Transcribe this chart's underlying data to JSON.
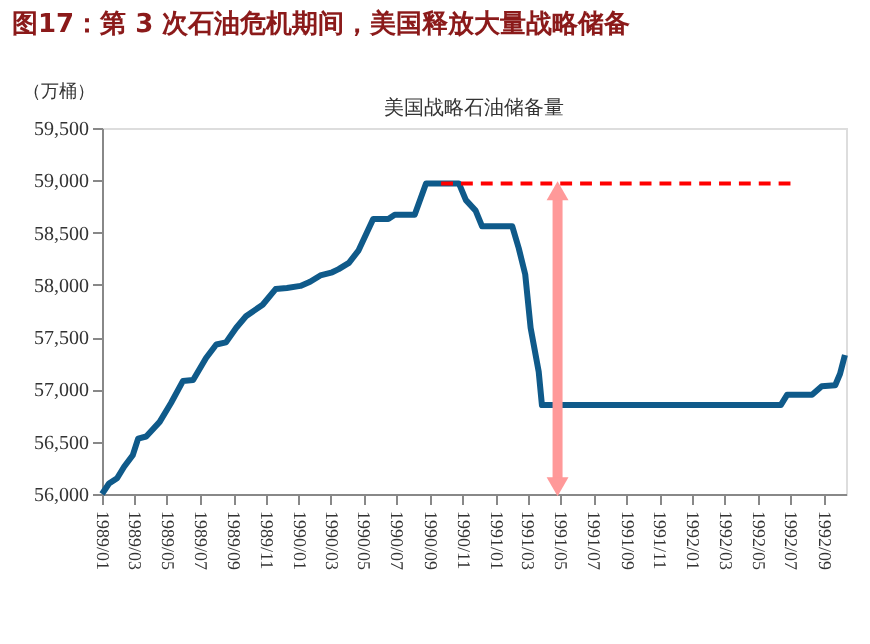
{
  "chart_data": {
    "type": "line",
    "title": "图17：第 3 次石油危机期间，美国释放大量战略储备",
    "subtitle": "美国战略石油储备量",
    "ylabel": "（万桶）",
    "xlim": [
      "1989-01-01",
      "1992-10-12"
    ],
    "ylim": [
      56000,
      59500
    ],
    "yticks": [
      {
        "value": 56000,
        "label": "56,000"
      },
      {
        "value": 56500,
        "label": "56,500"
      },
      {
        "value": 57000,
        "label": "57,000"
      },
      {
        "value": 57500,
        "label": "57,500"
      },
      {
        "value": 58000,
        "label": "58,000"
      },
      {
        "value": 58500,
        "label": "58,500"
      },
      {
        "value": 59000,
        "label": "59,000"
      },
      {
        "value": 59500,
        "label": "59,500"
      }
    ],
    "xticks": [
      {
        "value": "1989-01",
        "label": "1989/01"
      },
      {
        "value": "1989-03",
        "label": "1989/03"
      },
      {
        "value": "1989-05",
        "label": "1989/05"
      },
      {
        "value": "1989-07",
        "label": "1989/07"
      },
      {
        "value": "1989-09",
        "label": "1989/09"
      },
      {
        "value": "1989-11",
        "label": "1989/11"
      },
      {
        "value": "1990-01",
        "label": "1990/01"
      },
      {
        "value": "1990-03",
        "label": "1990/03"
      },
      {
        "value": "1990-05",
        "label": "1990/05"
      },
      {
        "value": "1990-07",
        "label": "1990/07"
      },
      {
        "value": "1990-09",
        "label": "1990/09"
      },
      {
        "value": "1990-11",
        "label": "1990/11"
      },
      {
        "value": "1991-01",
        "label": "1991/01"
      },
      {
        "value": "1991-03",
        "label": "1991/03"
      },
      {
        "value": "1991-05",
        "label": "1991/05"
      },
      {
        "value": "1991-07",
        "label": "1991/07"
      },
      {
        "value": "1991-09",
        "label": "1991/09"
      },
      {
        "value": "1991-11",
        "label": "1991/11"
      },
      {
        "value": "1992-01",
        "label": "1992/01"
      },
      {
        "value": "1992-03",
        "label": "1992/03"
      },
      {
        "value": "1992-05",
        "label": "1992/05"
      },
      {
        "value": "1992-07",
        "label": "1992/07"
      },
      {
        "value": "1992-09",
        "label": "1992/09"
      }
    ],
    "grid": false,
    "marker": "none",
    "series": [
      {
        "type": "line",
        "color": "#0f5a8a",
        "line_style": "solid",
        "x": [
          "1989-01-01",
          "1989-01-14",
          "1989-01-29",
          "1989-02-11",
          "1989-02-27",
          "1989-03-09",
          "1989-03-24",
          "1989-04-18",
          "1989-05-09",
          "1989-05-31",
          "1989-06-19",
          "1989-07-13",
          "1989-08-01",
          "1989-08-19",
          "1989-09-07",
          "1989-09-25",
          "1989-10-26",
          "1989-11-19",
          "1989-12-10",
          "1990-01-04",
          "1990-01-22",
          "1990-02-10",
          "1990-03-04",
          "1990-03-16",
          "1990-04-04",
          "1990-04-22",
          "1990-05-19",
          "1990-06-16",
          "1990-06-28",
          "1990-08-04",
          "1990-08-25",
          "1990-10-25",
          "1990-11-07",
          "1990-11-25",
          "1990-12-07",
          "1991-02-01",
          "1991-02-13",
          "1991-02-25",
          "1991-03-07",
          "1991-03-22",
          "1991-03-28",
          "1992-06-13",
          "1992-06-25",
          "1992-08-10",
          "1992-08-28",
          "1992-09-22",
          "1992-10-01",
          "1992-10-10"
        ],
        "values": [
          56000,
          56100,
          56150,
          56260,
          56370,
          56530,
          56550,
          56690,
          56870,
          57080,
          57090,
          57300,
          57430,
          57450,
          57590,
          57700,
          57810,
          57960,
          57970,
          57990,
          58030,
          58090,
          58120,
          58150,
          58210,
          58330,
          58630,
          58630,
          58670,
          58670,
          58970,
          58970,
          58810,
          58710,
          58560,
          58560,
          58350,
          58100,
          57590,
          57170,
          56850,
          56850,
          56950,
          56950,
          57030,
          57040,
          57150,
          57330
        ]
      },
      {
        "type": "line",
        "color": "#ff0000",
        "line_style": "dashed",
        "x": [
          "1990-09-22",
          "1992-07-01"
        ],
        "values": [
          58970,
          58970
        ]
      }
    ]
  }
}
